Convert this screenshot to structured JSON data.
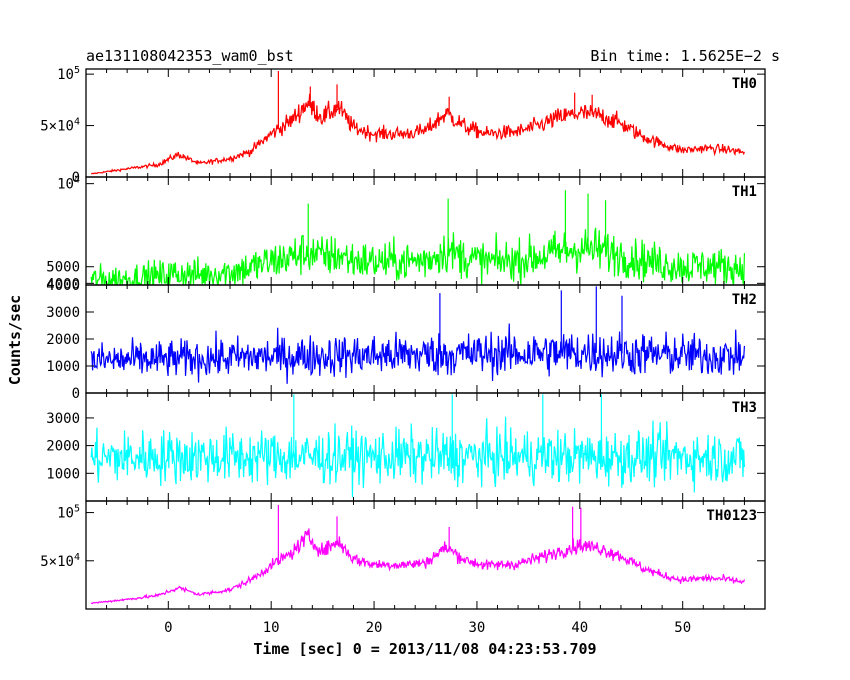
{
  "chart_data": {
    "type": "line",
    "title": "ae131108042353_wam0_bst",
    "subtitle": "Bin time: 1.5625E−2 s",
    "xlabel": "Time [sec] 0 = 2013/11/08 04:23:53.709",
    "ylabel": "Counts/sec",
    "xlim": [
      -8,
      58
    ],
    "x_ticks": [
      0,
      10,
      20,
      30,
      40,
      50
    ],
    "x_tick_labels": [
      "0",
      "10",
      "20",
      "30",
      "40",
      "50"
    ],
    "grid": false,
    "panels": [
      {
        "name": "TH0",
        "color": "#ff0000",
        "ylim": [
          0,
          105000
        ],
        "y_ticks": [
          {
            "value": 0,
            "label": "0"
          },
          {
            "value": 50000,
            "label": "5×10",
            "sup": "4"
          },
          {
            "value": 100000,
            "label": "10",
            "sup": "5"
          }
        ],
        "baseline": [
          [
            -7.5,
            3000
          ],
          [
            -4,
            8000
          ],
          [
            -1,
            12000
          ],
          [
            1,
            22000
          ],
          [
            3,
            13000
          ],
          [
            6,
            18000
          ],
          [
            8,
            25000
          ],
          [
            10,
            42000
          ],
          [
            12,
            55000
          ],
          [
            13.5,
            72000
          ],
          [
            15,
            58000
          ],
          [
            16.5,
            68000
          ],
          [
            18,
            48000
          ],
          [
            20,
            42000
          ],
          [
            23,
            42000
          ],
          [
            25,
            45000
          ],
          [
            27,
            62000
          ],
          [
            29,
            48000
          ],
          [
            31,
            42000
          ],
          [
            34,
            44000
          ],
          [
            36,
            50000
          ],
          [
            38,
            58000
          ],
          [
            40,
            62000
          ],
          [
            42,
            60000
          ],
          [
            44,
            52000
          ],
          [
            46,
            40000
          ],
          [
            48,
            32000
          ],
          [
            50,
            26000
          ],
          [
            52,
            28000
          ],
          [
            54,
            27000
          ],
          [
            56,
            24000
          ]
        ],
        "noise": 0.16,
        "spikes": [
          [
            10.7,
            103000
          ],
          [
            13.8,
            88000
          ],
          [
            16.4,
            90000
          ],
          [
            27.3,
            78000
          ],
          [
            39.5,
            82000
          ],
          [
            41.2,
            80000
          ]
        ]
      },
      {
        "name": "TH1",
        "color": "#00ff00",
        "ylim": [
          3900,
          10400
        ],
        "y_ticks": [
          {
            "value": 4000,
            "label": "4000"
          },
          {
            "value": 5000,
            "label": "5000"
          },
          {
            "value": 10000,
            "label": "10",
            "sup": "4"
          }
        ],
        "baseline": [
          [
            -7.5,
            4150
          ],
          [
            -4,
            4250
          ],
          [
            -1,
            4400
          ],
          [
            1,
            4600
          ],
          [
            3,
            4500
          ],
          [
            6,
            4700
          ],
          [
            8,
            4950
          ],
          [
            10,
            5300
          ],
          [
            12,
            5600
          ],
          [
            13.5,
            5900
          ],
          [
            15,
            5600
          ],
          [
            16.5,
            5700
          ],
          [
            18,
            5400
          ],
          [
            20,
            5300
          ],
          [
            23,
            5300
          ],
          [
            25,
            5400
          ],
          [
            27,
            6000
          ],
          [
            29,
            5500
          ],
          [
            31,
            5300
          ],
          [
            34,
            5400
          ],
          [
            36,
            5600
          ],
          [
            38,
            5900
          ],
          [
            40,
            6100
          ],
          [
            42,
            6000
          ],
          [
            44,
            5700
          ],
          [
            46,
            5400
          ],
          [
            48,
            5200
          ],
          [
            50,
            5000
          ],
          [
            52,
            5050
          ],
          [
            54,
            5000
          ],
          [
            56,
            4900
          ]
        ],
        "noise": 0.22,
        "spikes": [
          [
            13.6,
            8800
          ],
          [
            27.2,
            9100
          ],
          [
            38.6,
            9600
          ],
          [
            40.8,
            9400
          ],
          [
            42.5,
            9000
          ]
        ]
      },
      {
        "name": "TH2",
        "color": "#0000ff",
        "ylim": [
          0,
          4000
        ],
        "y_ticks": [
          {
            "value": 0,
            "label": "0"
          },
          {
            "value": 1000,
            "label": "1000"
          },
          {
            "value": 2000,
            "label": "2000"
          },
          {
            "value": 3000,
            "label": "3000"
          },
          {
            "value": 4000,
            "label": "4000"
          }
        ],
        "baseline": [
          [
            -7.5,
            1200
          ],
          [
            0,
            1250
          ],
          [
            10,
            1350
          ],
          [
            20,
            1400
          ],
          [
            30,
            1450
          ],
          [
            40,
            1500
          ],
          [
            50,
            1400
          ],
          [
            56,
            1350
          ]
        ],
        "noise": 0.55,
        "spikes": [
          [
            26.4,
            3700
          ],
          [
            38.2,
            3800
          ],
          [
            41.6,
            3950
          ],
          [
            44.1,
            3600
          ]
        ]
      },
      {
        "name": "TH3",
        "color": "#00ffff",
        "ylim": [
          0,
          3900
        ],
        "y_ticks": [
          {
            "value": 1000,
            "label": "1000"
          },
          {
            "value": 2000,
            "label": "2000"
          },
          {
            "value": 3000,
            "label": "3000"
          }
        ],
        "baseline": [
          [
            -7.5,
            1550
          ],
          [
            0,
            1600
          ],
          [
            10,
            1600
          ],
          [
            20,
            1600
          ],
          [
            30,
            1600
          ],
          [
            40,
            1600
          ],
          [
            50,
            1600
          ],
          [
            56,
            1550
          ]
        ],
        "noise": 0.6,
        "spikes": [
          [
            12.2,
            3850
          ],
          [
            27.6,
            3850
          ],
          [
            36.4,
            3850
          ],
          [
            42.1,
            3850
          ]
        ]
      },
      {
        "name": "TH0123",
        "color": "#ff00ff",
        "ylim": [
          0,
          112000
        ],
        "y_ticks": [
          {
            "value": 50000,
            "label": "5×10",
            "sup": "4"
          },
          {
            "value": 100000,
            "label": "10",
            "sup": "5"
          }
        ],
        "baseline": [
          [
            -7.5,
            6000
          ],
          [
            -4,
            10000
          ],
          [
            -1,
            14000
          ],
          [
            1,
            22000
          ],
          [
            3,
            15000
          ],
          [
            6,
            20000
          ],
          [
            8,
            30000
          ],
          [
            10,
            45000
          ],
          [
            12,
            58000
          ],
          [
            13.5,
            75000
          ],
          [
            15,
            60000
          ],
          [
            16.5,
            70000
          ],
          [
            18,
            52000
          ],
          [
            20,
            46000
          ],
          [
            23,
            46000
          ],
          [
            25,
            48000
          ],
          [
            27,
            64000
          ],
          [
            29,
            50000
          ],
          [
            31,
            45000
          ],
          [
            34,
            47000
          ],
          [
            36,
            53000
          ],
          [
            38,
            60000
          ],
          [
            40,
            66000
          ],
          [
            42,
            63000
          ],
          [
            44,
            55000
          ],
          [
            46,
            43000
          ],
          [
            48,
            35000
          ],
          [
            50,
            30000
          ],
          [
            52,
            32000
          ],
          [
            54,
            31000
          ],
          [
            56,
            28000
          ]
        ],
        "noise": 0.12,
        "spikes": [
          [
            10.7,
            108000
          ],
          [
            16.4,
            96000
          ],
          [
            27.3,
            85000
          ],
          [
            39.3,
            106000
          ],
          [
            40.1,
            105000
          ]
        ]
      }
    ]
  }
}
